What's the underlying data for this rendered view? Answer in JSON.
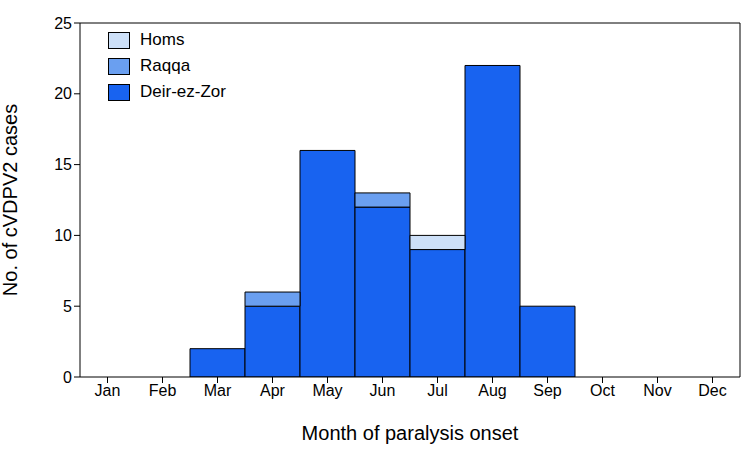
{
  "chart_data": {
    "type": "bar",
    "stacked": true,
    "x_label": "Month of paralysis onset",
    "y_label": "No. of cVDPV2 cases",
    "categories": [
      "Jan",
      "Feb",
      "Mar",
      "Apr",
      "May",
      "Jun",
      "Jul",
      "Aug",
      "Sep",
      "Oct",
      "Nov",
      "Dec"
    ],
    "series": [
      {
        "name": "Deir-ez-Zor",
        "color": "#1863f0",
        "values": [
          0,
          0,
          2,
          5,
          16,
          12,
          9,
          22,
          5,
          0,
          0,
          0
        ]
      },
      {
        "name": "Raqqa",
        "color": "#6a9ff0",
        "values": [
          0,
          0,
          0,
          1,
          0,
          1,
          0,
          0,
          0,
          0,
          0,
          0
        ]
      },
      {
        "name": "Homs",
        "color": "#cde0f8",
        "values": [
          0,
          0,
          0,
          0,
          0,
          0,
          1,
          0,
          0,
          0,
          0,
          0
        ]
      }
    ],
    "ylim": [
      0,
      25
    ],
    "yticks": [
      0,
      5,
      10,
      15,
      20,
      25
    ],
    "grid": false,
    "legend": "top-left"
  }
}
